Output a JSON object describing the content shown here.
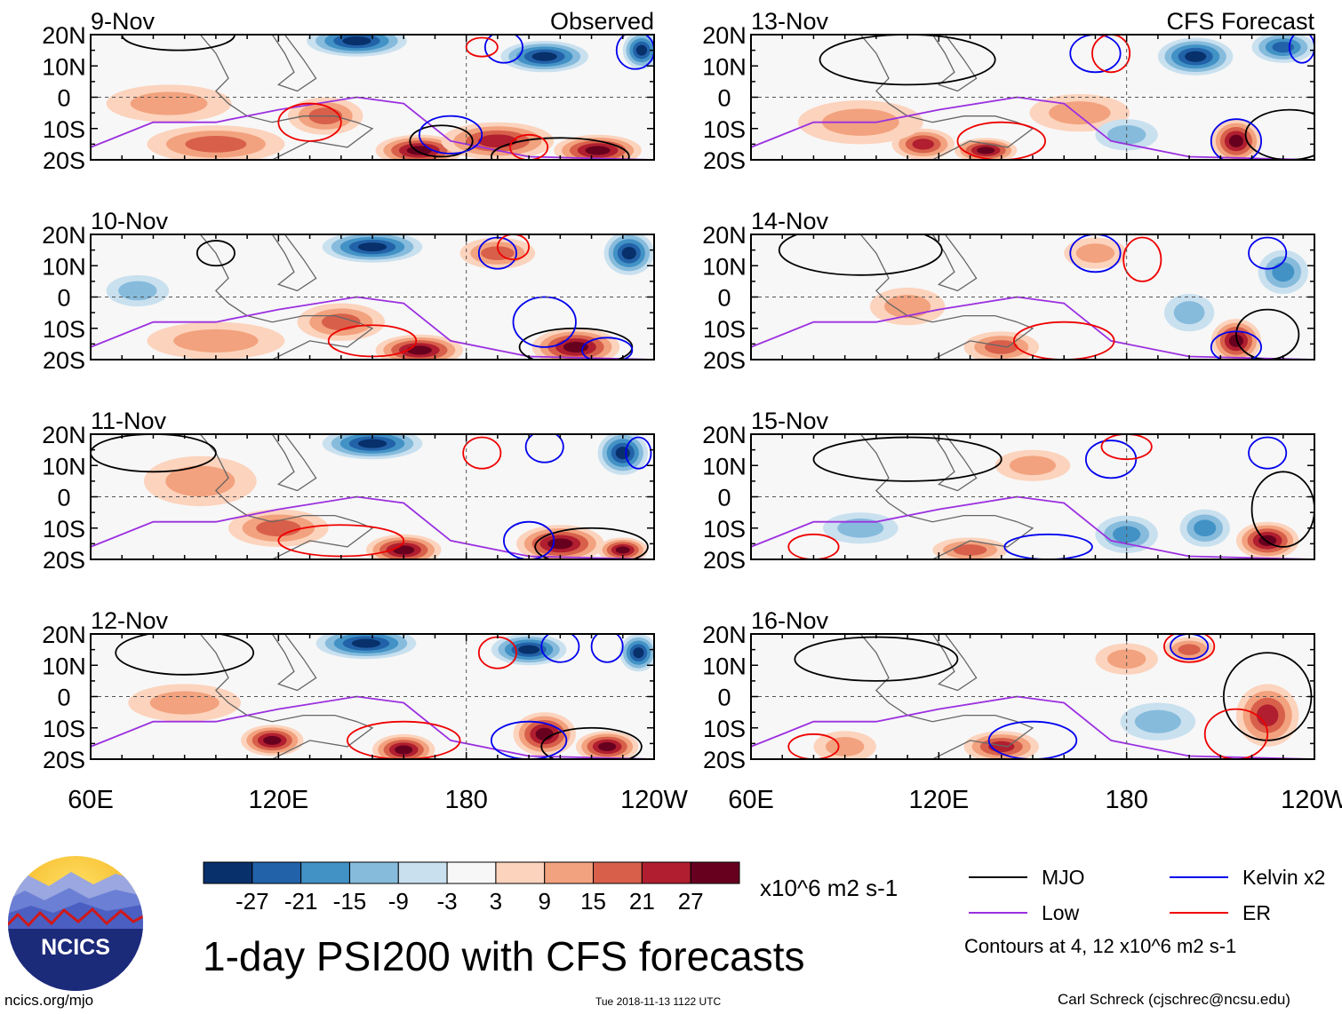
{
  "chart_data": {
    "type": "heatmap",
    "title": "1-day PSI200 with CFS forecasts",
    "units": "x10^6 m2 s-1",
    "x_ticks": [
      "60E",
      "120E",
      "180",
      "120W"
    ],
    "y_ticks": [
      "20N",
      "10N",
      "0",
      "10S",
      "20S"
    ],
    "xlim_deg_east": [
      60,
      240
    ],
    "ylim_deg_lat": [
      -20,
      20
    ],
    "observed_label": "Observed",
    "forecast_label": "CFS Forecast",
    "observed_panels": [
      {
        "date": "9-Nov"
      },
      {
        "date": "10-Nov"
      },
      {
        "date": "11-Nov"
      },
      {
        "date": "12-Nov"
      }
    ],
    "forecast_panels": [
      {
        "date": "13-Nov"
      },
      {
        "date": "14-Nov"
      },
      {
        "date": "15-Nov"
      },
      {
        "date": "16-Nov"
      }
    ],
    "colorbar": {
      "labels": [
        "-27",
        "-21",
        "-15",
        "-9",
        "-3",
        "3",
        "9",
        "15",
        "21",
        "27"
      ],
      "colors": [
        "#08306b",
        "#2262a8",
        "#4292c6",
        "#86bbdc",
        "#c9e0ef",
        "#f7f7f7",
        "#fcd3bd",
        "#f2a27e",
        "#d8604b",
        "#b01e2f",
        "#67001f"
      ]
    },
    "contour_legend": [
      {
        "label": "MJO",
        "color": "#000000"
      },
      {
        "label": "Kelvin x2",
        "color": "#0000ee"
      },
      {
        "label": "Low",
        "color": "#9b30e0"
      },
      {
        "label": "ER",
        "color": "#ee0000"
      }
    ],
    "contour_note": "Contours at 4, 12 x10^6 m2 s-1"
  },
  "footer": {
    "logo_text": "NCICS",
    "site": "ncics.org/mjo",
    "timestamp": "Tue 2018-11-13 1122 UTC",
    "author": "Carl Schreck (cjschrec@ncsu.edu)"
  }
}
